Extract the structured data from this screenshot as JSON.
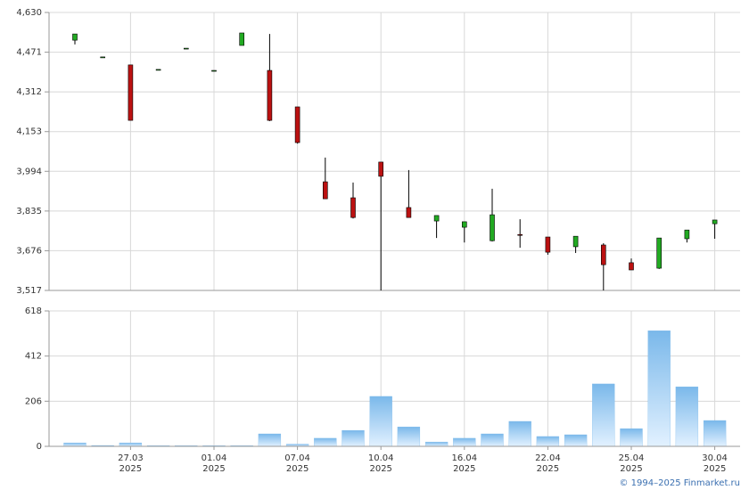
{
  "chart_data": [
    {
      "type": "candlestick",
      "open": [
        4519,
        4452,
        4420,
        4402,
        4487,
        4398,
        4498,
        4398,
        4252,
        3952,
        3888,
        4031,
        3849,
        3795,
        3770,
        3716,
        3741,
        3731,
        3692,
        3699,
        3628,
        3606,
        3724,
        3784
      ],
      "high": [
        4544,
        4452,
        4420,
        4402,
        4487,
        4398,
        4548,
        4544,
        4252,
        4049,
        3949,
        4031,
        3999,
        3817,
        3792,
        3924,
        3802,
        3731,
        3734,
        3706,
        3645,
        3727,
        3759,
        3799
      ],
      "low": [
        4502,
        4452,
        4198,
        4402,
        4487,
        4398,
        4498,
        4195,
        4105,
        3884,
        3805,
        3517,
        3809,
        3727,
        3709,
        3713,
        3688,
        3660,
        3667,
        3517,
        3599,
        3603,
        3709,
        3724
      ],
      "close": [
        4544,
        4452,
        4198,
        4402,
        4487,
        4398,
        4548,
        4198,
        4109,
        3884,
        3809,
        3974,
        3809,
        3817,
        3792,
        3820,
        3738,
        3670,
        3734,
        3620,
        3599,
        3727,
        3759,
        3799
      ],
      "up_color": "#22aa22",
      "down_color": "#bb1111",
      "ylim": [
        3517,
        4630
      ],
      "yticks": [
        {
          "value": 3517,
          "label": "3,517"
        },
        {
          "value": 3676,
          "label": "3,676"
        },
        {
          "value": 3835,
          "label": "3,835"
        },
        {
          "value": 3994,
          "label": "3,994"
        },
        {
          "value": 4153,
          "label": "4,153"
        },
        {
          "value": 4312,
          "label": "4,312"
        },
        {
          "value": 4471,
          "label": "4,471"
        },
        {
          "value": 4630,
          "label": "4,630"
        }
      ],
      "grid": true
    },
    {
      "type": "bar",
      "categories": [
        null,
        null,
        "27.03\n2025",
        null,
        null,
        "01.04\n2025",
        null,
        null,
        "07.04\n2025",
        null,
        null,
        "10.04\n2025",
        null,
        null,
        "16.04\n2025",
        null,
        null,
        "22.04\n2025",
        null,
        null,
        "25.04\n2025",
        null,
        null,
        "30.04\n2025"
      ],
      "values": [
        16,
        4,
        16,
        3,
        3,
        3,
        3,
        57,
        10,
        37,
        73,
        228,
        89,
        20,
        37,
        57,
        114,
        45,
        53,
        285,
        81,
        528,
        272,
        118
      ],
      "color": "#7ab8ea",
      "ylim": [
        0,
        618
      ],
      "yticks": [
        0,
        206,
        412,
        618
      ],
      "grid": true
    }
  ],
  "footer": "© 1994–2025 Finmarket.ru"
}
